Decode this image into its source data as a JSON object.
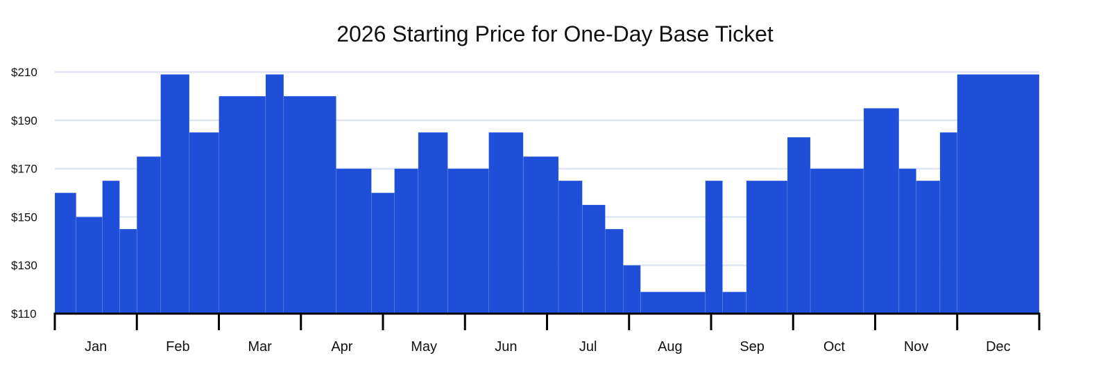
{
  "chart_data": {
    "type": "bar",
    "subtype": "step-histogram",
    "title": "2026 Starting Price for One-Day Base Ticket",
    "xlabel": "",
    "ylabel": "",
    "y_axis": {
      "min": 110,
      "max": 210,
      "ticks": [
        110,
        130,
        150,
        170,
        190,
        210
      ],
      "tick_prefix": "$"
    },
    "x_axis": {
      "unit": "month",
      "min": 0,
      "max": 12,
      "tick_labels": [
        "Jan",
        "Feb",
        "Mar",
        "Apr",
        "May",
        "Jun",
        "Jul",
        "Aug",
        "Sep",
        "Oct",
        "Nov",
        "Dec"
      ]
    },
    "grid": {
      "horizontal": true,
      "vertical": false
    },
    "bar_color": "#1f4fd8",
    "grid_color": "#dfe6f1",
    "series": [
      {
        "segments": [
          {
            "start": 0.0,
            "end": 0.26,
            "price": 160
          },
          {
            "start": 0.26,
            "end": 0.58,
            "price": 150
          },
          {
            "start": 0.58,
            "end": 0.79,
            "price": 165
          },
          {
            "start": 0.79,
            "end": 1.0,
            "price": 145
          },
          {
            "start": 1.0,
            "end": 1.29,
            "price": 175
          },
          {
            "start": 1.29,
            "end": 1.64,
            "price": 209
          },
          {
            "start": 1.64,
            "end": 2.0,
            "price": 185
          },
          {
            "start": 2.0,
            "end": 2.57,
            "price": 200
          },
          {
            "start": 2.57,
            "end": 2.79,
            "price": 209
          },
          {
            "start": 2.79,
            "end": 3.43,
            "price": 200
          },
          {
            "start": 3.43,
            "end": 3.86,
            "price": 170
          },
          {
            "start": 3.86,
            "end": 4.14,
            "price": 160
          },
          {
            "start": 4.14,
            "end": 4.43,
            "price": 170
          },
          {
            "start": 4.43,
            "end": 4.79,
            "price": 185
          },
          {
            "start": 4.79,
            "end": 5.29,
            "price": 170
          },
          {
            "start": 5.29,
            "end": 5.71,
            "price": 185
          },
          {
            "start": 5.71,
            "end": 6.14,
            "price": 175
          },
          {
            "start": 6.14,
            "end": 6.43,
            "price": 165
          },
          {
            "start": 6.43,
            "end": 6.71,
            "price": 155
          },
          {
            "start": 6.71,
            "end": 6.93,
            "price": 145
          },
          {
            "start": 6.93,
            "end": 7.14,
            "price": 130
          },
          {
            "start": 7.14,
            "end": 7.93,
            "price": 119
          },
          {
            "start": 7.93,
            "end": 8.14,
            "price": 165
          },
          {
            "start": 8.14,
            "end": 8.43,
            "price": 119
          },
          {
            "start": 8.43,
            "end": 8.93,
            "price": 165
          },
          {
            "start": 8.93,
            "end": 9.21,
            "price": 183
          },
          {
            "start": 9.21,
            "end": 9.86,
            "price": 170
          },
          {
            "start": 9.86,
            "end": 10.29,
            "price": 195
          },
          {
            "start": 10.29,
            "end": 10.5,
            "price": 170
          },
          {
            "start": 10.5,
            "end": 10.79,
            "price": 165
          },
          {
            "start": 10.79,
            "end": 11.0,
            "price": 185
          },
          {
            "start": 11.0,
            "end": 12.0,
            "price": 209
          }
        ]
      }
    ]
  }
}
